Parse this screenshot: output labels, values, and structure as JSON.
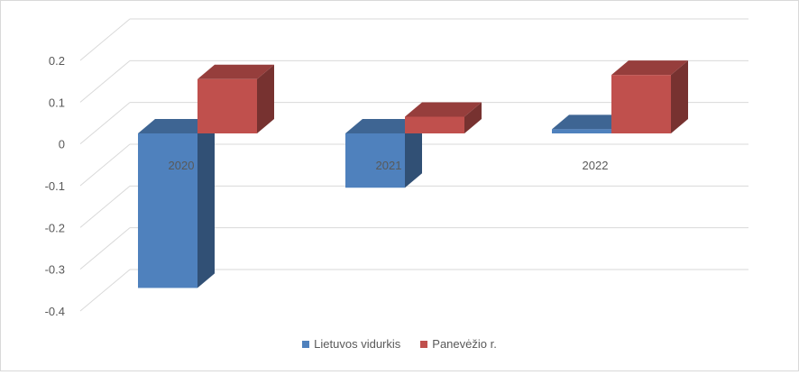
{
  "chart_data": {
    "type": "bar",
    "variant": "3d-clustered-column",
    "categories": [
      "2020",
      "2021",
      "2022"
    ],
    "series": [
      {
        "name": "Lietuvos vidurkis",
        "values": [
          -0.37,
          -0.13,
          0.01
        ],
        "color": "#4f81bd"
      },
      {
        "name": "Panevėžio r.",
        "values": [
          0.13,
          0.04,
          0.14
        ],
        "color": "#c0504d"
      }
    ],
    "y_ticks": [
      "-0.4",
      "-0.3",
      "-0.2",
      "-0.1",
      "0",
      "0.1",
      "0.2"
    ],
    "ylim": [
      -0.4,
      0.2
    ],
    "grid": true,
    "legend_position": "bottom",
    "title": "",
    "xlabel": "",
    "ylabel": ""
  }
}
